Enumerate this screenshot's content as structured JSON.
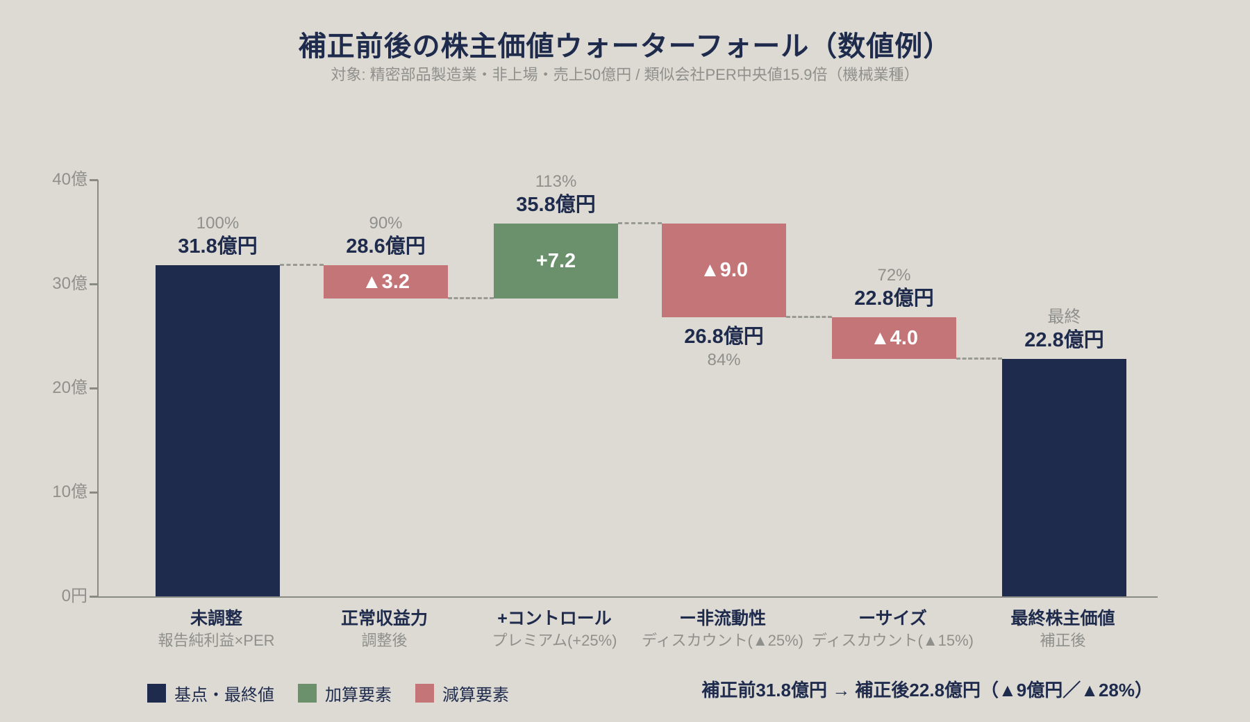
{
  "title": "補正前後の株主価値ウォーターフォール（数値例）",
  "subtitle": "対象: 精密部品製造業・非上場・売上50億円 / 類似会社PER中央値15.9倍（機械業種）",
  "colors": {
    "background": "#dcdad3",
    "base_final": "#1f2b4d",
    "increase": "#6a906c",
    "decrease": "#c47577",
    "gray_text": "#8f8f8c",
    "axis": "#8a8a85",
    "connector": "#9a9a94",
    "inside_text": "#ffffff"
  },
  "legend": {
    "items": [
      {
        "label": "基点・最終値",
        "color": "#1f2b4d"
      },
      {
        "label": "加算要素",
        "color": "#6a906c"
      },
      {
        "label": "減算要素",
        "color": "#c47577"
      }
    ]
  },
  "footer_summary": "補正前31.8億円 → 補正後22.8億円（▲9億円／▲28%）",
  "chart_data": {
    "type": "bar",
    "subtype": "waterfall",
    "unit": "億円",
    "ylim": [
      0,
      40
    ],
    "grid": false,
    "yticks": [
      {
        "value": 0,
        "label": "0円"
      },
      {
        "value": 10,
        "label": "10億"
      },
      {
        "value": 20,
        "label": "20億"
      },
      {
        "value": 30,
        "label": "30億"
      },
      {
        "value": 40,
        "label": "40億"
      }
    ],
    "bars": [
      {
        "category": "未調整",
        "sub": "報告純利益×PER",
        "kind": "base",
        "from": 0,
        "to": 31.8,
        "delta": 0,
        "pct_label": "100%",
        "value_label": "31.8億円",
        "inside_label": "",
        "label_pos": "above"
      },
      {
        "category": "正常収益力",
        "sub": "調整後",
        "kind": "decrease",
        "from": 31.8,
        "to": 28.6,
        "delta": -3.2,
        "pct_label": "90%",
        "value_label": "28.6億円",
        "inside_label": "▲3.2",
        "label_pos": "above"
      },
      {
        "category": "+コントロール",
        "sub": "プレミアム(+25%)",
        "kind": "increase",
        "from": 28.6,
        "to": 35.8,
        "delta": 7.2,
        "pct_label": "113%",
        "value_label": "35.8億円",
        "inside_label": "+7.2",
        "label_pos": "above"
      },
      {
        "category": "ー非流動性",
        "sub": "ディスカウント(▲25%)",
        "kind": "decrease",
        "from": 35.8,
        "to": 26.8,
        "delta": -9.0,
        "pct_label": "84%",
        "value_label": "26.8億円",
        "inside_label": "▲9.0",
        "label_pos": "below"
      },
      {
        "category": "ーサイズ",
        "sub": "ディスカウント(▲15%)",
        "kind": "decrease",
        "from": 26.8,
        "to": 22.8,
        "delta": -4.0,
        "pct_label": "72%",
        "value_label": "22.8億円",
        "inside_label": "▲4.0",
        "label_pos": "above"
      },
      {
        "category": "最終株主価値",
        "sub": "補正後",
        "kind": "final",
        "from": 0,
        "to": 22.8,
        "delta": 0,
        "pct_label": "最終",
        "value_label": "22.8億円",
        "inside_label": "",
        "label_pos": "above"
      }
    ],
    "connector_levels": [
      31.8,
      28.6,
      35.8,
      26.8,
      22.8
    ]
  }
}
